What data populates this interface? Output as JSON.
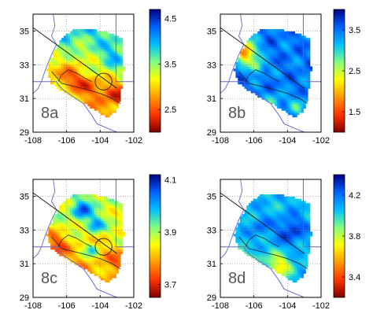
{
  "chart_data": [
    {
      "type": "heatmap",
      "panel_label": "8a",
      "x_ticks": [
        -108,
        -106,
        -104,
        -102
      ],
      "y_ticks": [
        35,
        33,
        31,
        29
      ],
      "xlim": [
        -108,
        -102
      ],
      "ylim": [
        29,
        36
      ],
      "colorbar_ticks": [
        "4.5",
        "3.5",
        "2.5"
      ],
      "colorbar_range": [
        2.0,
        4.7
      ],
      "grid": true,
      "circle_center": [
        -103.8,
        32.0
      ],
      "circle_radius_deg": 0.5
    },
    {
      "type": "heatmap",
      "panel_label": "8b",
      "x_ticks": [
        -108,
        -106,
        -104,
        -102
      ],
      "y_ticks": [
        35,
        33,
        31,
        29
      ],
      "xlim": [
        -108,
        -102
      ],
      "ylim": [
        29,
        36
      ],
      "colorbar_ticks": [
        "3.5",
        "2.5",
        "1.5"
      ],
      "colorbar_range": [
        1.0,
        4.0
      ],
      "grid": true
    },
    {
      "type": "heatmap",
      "panel_label": "8c",
      "x_ticks": [
        -108,
        -106,
        -104,
        -102
      ],
      "y_ticks": [
        35,
        33,
        31,
        29
      ],
      "xlim": [
        -108,
        -102
      ],
      "ylim": [
        29,
        36
      ],
      "colorbar_ticks": [
        "4.1",
        "3.9",
        "3.7"
      ],
      "colorbar_range": [
        3.65,
        4.12
      ],
      "grid": true,
      "circle_center": [
        -103.8,
        32.0
      ],
      "circle_radius_deg": 0.5
    },
    {
      "type": "heatmap",
      "panel_label": "8d",
      "x_ticks": [
        -108,
        -106,
        -104,
        -102
      ],
      "y_ticks": [
        35,
        33,
        31,
        29
      ],
      "xlim": [
        -108,
        -102
      ],
      "ylim": [
        29,
        36
      ],
      "colorbar_ticks": [
        "4.2",
        "3.8",
        "3.4"
      ],
      "colorbar_range": [
        3.2,
        4.4
      ],
      "grid": true
    }
  ],
  "colors": {
    "colormap": [
      "#7f0000",
      "#ff3300",
      "#ff9900",
      "#ffff00",
      "#80ff80",
      "#00c0ff",
      "#0060ff",
      "#000080"
    ],
    "state_border": "#6666cc",
    "fault_line": "#222222",
    "grid": "#888888"
  }
}
